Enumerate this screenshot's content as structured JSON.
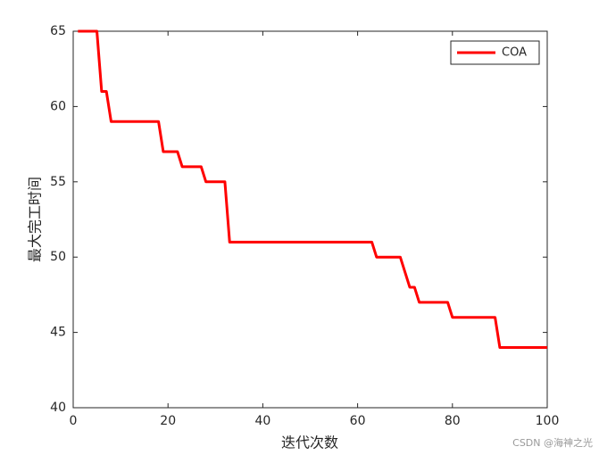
{
  "chart_data": {
    "type": "line",
    "xlabel": "迭代次数",
    "ylabel": "最大完工时间",
    "watermark": "CSDN @海神之光",
    "x": [
      1,
      2,
      3,
      4,
      5,
      6,
      7,
      8,
      9,
      10,
      11,
      12,
      13,
      14,
      15,
      16,
      17,
      18,
      19,
      20,
      21,
      22,
      23,
      24,
      25,
      26,
      27,
      28,
      29,
      30,
      31,
      32,
      33,
      34,
      35,
      36,
      37,
      38,
      39,
      40,
      41,
      42,
      43,
      44,
      45,
      46,
      47,
      48,
      49,
      50,
      51,
      52,
      53,
      54,
      55,
      56,
      57,
      58,
      59,
      60,
      61,
      62,
      63,
      64,
      65,
      66,
      67,
      68,
      69,
      70,
      71,
      72,
      73,
      74,
      75,
      76,
      77,
      78,
      79,
      80,
      81,
      82,
      83,
      84,
      85,
      86,
      87,
      88,
      89,
      90,
      91,
      92,
      93,
      94,
      95,
      96,
      97,
      98,
      99,
      100
    ],
    "series": [
      {
        "name": "COA",
        "color": "#ff0000",
        "values": [
          65,
          65,
          65,
          65,
          65,
          61,
          61,
          59,
          59,
          59,
          59,
          59,
          59,
          59,
          59,
          59,
          59,
          59,
          57,
          57,
          57,
          57,
          56,
          56,
          56,
          56,
          56,
          55,
          55,
          55,
          55,
          55,
          51,
          51,
          51,
          51,
          51,
          51,
          51,
          51,
          51,
          51,
          51,
          51,
          51,
          51,
          51,
          51,
          51,
          51,
          51,
          51,
          51,
          51,
          51,
          51,
          51,
          51,
          51,
          51,
          51,
          51,
          51,
          50,
          50,
          50,
          50,
          50,
          50,
          49,
          48,
          48,
          47,
          47,
          47,
          47,
          47,
          47,
          47,
          46,
          46,
          46,
          46,
          46,
          46,
          46,
          46,
          46,
          46,
          44,
          44,
          44,
          44,
          44,
          44,
          44,
          44,
          44,
          44,
          44
        ]
      }
    ],
    "xlim": [
      0,
      100
    ],
    "ylim": [
      40,
      65
    ],
    "xticks": [
      0,
      20,
      40,
      60,
      80,
      100
    ],
    "yticks": [
      40,
      45,
      50,
      55,
      60,
      65
    ],
    "grid": false,
    "legend": "upper right"
  }
}
